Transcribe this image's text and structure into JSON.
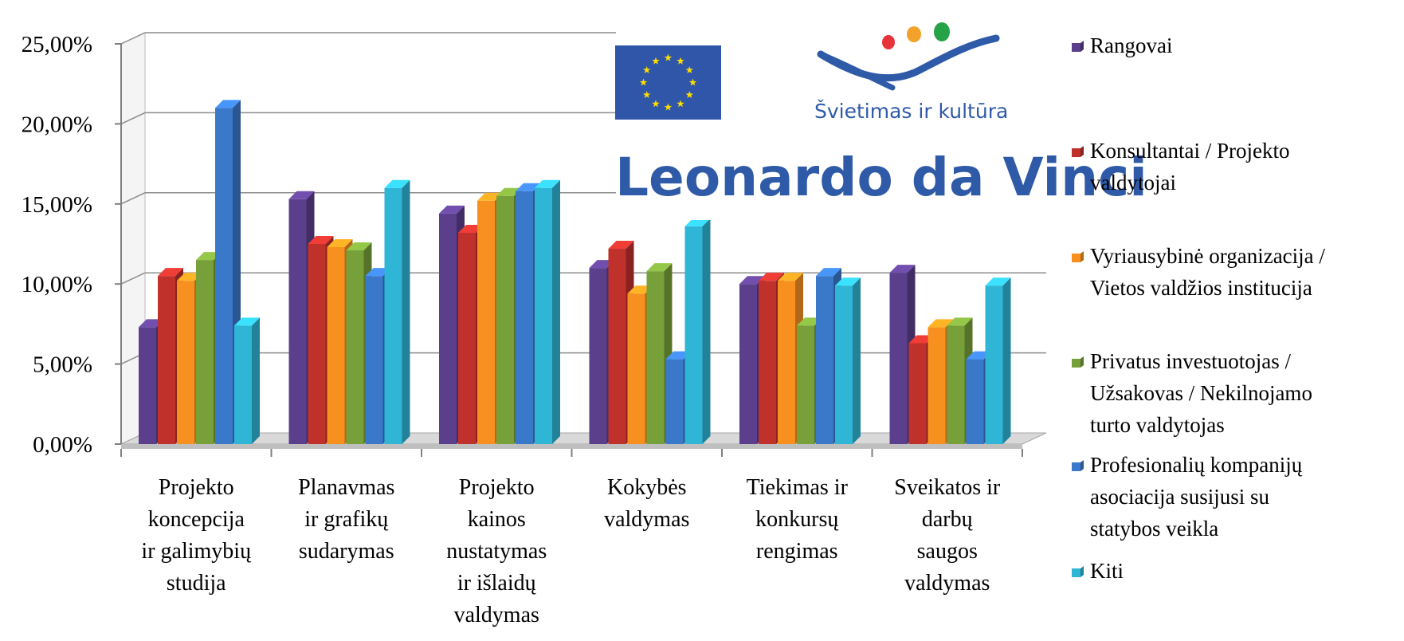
{
  "chart_data": {
    "type": "bar",
    "title": "",
    "xlabel": "",
    "ylabel": "",
    "ylim": [
      0,
      25
    ],
    "y_ticks": [
      "0,00%",
      "5,00%",
      "10,00%",
      "15,00%",
      "20,00%",
      "25,00%"
    ],
    "grid": true,
    "legend_position": "right",
    "categories": [
      [
        "Projekto",
        "koncepcija",
        "ir galimybių",
        "studija"
      ],
      [
        "Planavmas",
        "ir grafikų",
        "sudarymas"
      ],
      [
        "Projekto",
        "kainos",
        "nustatymas",
        "ir išlaidų",
        "valdymas"
      ],
      [
        "Kokybės",
        "valdymas"
      ],
      [
        "Tiekimas ir",
        "konkursų",
        "rengimas"
      ],
      [
        "Sveikatos ir",
        "darbų",
        "saugos",
        "valdymas"
      ]
    ],
    "series": [
      {
        "name": [
          "Rangovai"
        ],
        "color": "#5b3f8c",
        "values": [
          7.3,
          15.3,
          14.4,
          11.0,
          10.0,
          10.7
        ]
      },
      {
        "name": [
          "Konsultantai / Projekto",
          "valdytojai"
        ],
        "color": "#c0312b",
        "values": [
          10.5,
          12.5,
          13.2,
          12.2,
          10.2,
          6.3
        ]
      },
      {
        "name": [
          "Vyriausybinė organizacija /",
          "Vietos valdžios institucija"
        ],
        "color": "#f7901e",
        "values": [
          10.2,
          12.3,
          15.2,
          9.4,
          10.2,
          7.3
        ]
      },
      {
        "name": [
          "Privatus investuotojas /",
          "Užsakovas / Nekilnojamo",
          "turto valdytojas"
        ],
        "color": "#77a03a",
        "values": [
          11.5,
          12.1,
          15.5,
          10.8,
          7.4,
          7.4
        ]
      },
      {
        "name": [
          "Profesionalių kompanijų",
          "asociacija susijusi su",
          "statybos veikla"
        ],
        "color": "#3a78c9",
        "values": [
          21.0,
          10.5,
          15.8,
          5.3,
          10.5,
          5.3
        ]
      },
      {
        "name": [
          "Kiti"
        ],
        "color": "#2fb5d6",
        "values": [
          7.4,
          16.0,
          16.0,
          13.6,
          9.9,
          9.9
        ]
      }
    ]
  },
  "sponsor": {
    "program_name": "Leonardo da Vinci",
    "tagline": "Švietimas ir kultūra",
    "flag_color": "#2f56a8",
    "star_color": "#ffdd00",
    "wave_color": "#2f5aa8",
    "dot_colors": [
      "#e8333a",
      "#f2a22a",
      "#27a347"
    ]
  }
}
